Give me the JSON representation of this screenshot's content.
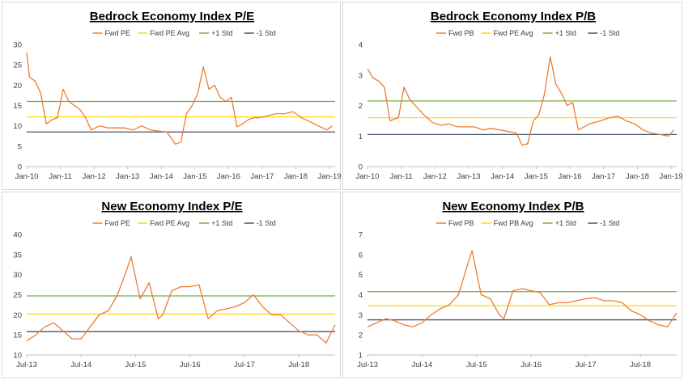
{
  "colors": {
    "fwd": "#ed7d31",
    "avg": "#ffd700",
    "plus_std": "#70ad47",
    "minus_std": "#44546a",
    "axis": "#bfbfbf",
    "text": "#404040"
  },
  "chart_data": [
    {
      "type": "line",
      "title": "Bedrock Economy Index P/E",
      "legend": [
        "Fwd PE",
        "Fwd PE Avg",
        "+1 Std",
        "-1 Std"
      ],
      "legend_position": "top",
      "grid": false,
      "x_ticks": [
        "Jan-10",
        "Jan-11",
        "Jan-12",
        "Jan-13",
        "Jan-14",
        "Jan-15",
        "Jan-16",
        "Jan-17",
        "Jan-18",
        "Jan-19"
      ],
      "x_range": [
        "2010-01",
        "2019-03"
      ],
      "ylim": [
        0,
        30
      ],
      "y_ticks": [
        0,
        5,
        10,
        15,
        20,
        25,
        30
      ],
      "avg": 12.2,
      "plus_std": 16.0,
      "minus_std": 8.5,
      "series": [
        {
          "name": "Fwd PE",
          "x": [
            "2010-01",
            "2010-02",
            "2010-04",
            "2010-06",
            "2010-08",
            "2010-10",
            "2010-12",
            "2011-02",
            "2011-04",
            "2011-06",
            "2011-08",
            "2011-10",
            "2011-12",
            "2012-03",
            "2012-06",
            "2012-09",
            "2012-12",
            "2013-03",
            "2013-06",
            "2013-09",
            "2013-12",
            "2014-03",
            "2014-06",
            "2014-08",
            "2014-10",
            "2014-12",
            "2015-02",
            "2015-04",
            "2015-06",
            "2015-08",
            "2015-10",
            "2015-12",
            "2016-02",
            "2016-04",
            "2016-06",
            "2016-08",
            "2016-10",
            "2016-12",
            "2017-03",
            "2017-06",
            "2017-09",
            "2017-12",
            "2018-03",
            "2018-06",
            "2018-09",
            "2018-12",
            "2019-02"
          ],
          "values": [
            28,
            22,
            21,
            18,
            10.5,
            11.5,
            12,
            19,
            16,
            15,
            14,
            12,
            9,
            10,
            9.5,
            9.5,
            9.5,
            9,
            10,
            9,
            8.7,
            8.5,
            5.5,
            6,
            13,
            15,
            18,
            24.5,
            19,
            20,
            17,
            16,
            17,
            9.8,
            10.5,
            11.5,
            12,
            12,
            12.5,
            13,
            13,
            13.5,
            12,
            11,
            10,
            9,
            10
          ]
        }
      ]
    },
    {
      "type": "line",
      "title": "Bedrock Economy Index P/B",
      "legend": [
        "Fwd PB",
        "Fwd PE Avg",
        "+1 Std",
        "-1 Std"
      ],
      "legend_position": "top",
      "grid": false,
      "x_ticks": [
        "Jan-10",
        "Jan-11",
        "Jan-12",
        "Jan-13",
        "Jan-14",
        "Jan-15",
        "Jan-16",
        "Jan-17",
        "Jan-18",
        "Jan-19"
      ],
      "x_range": [
        "2010-01",
        "2019-03"
      ],
      "ylim": [
        0,
        4
      ],
      "y_ticks": [
        0,
        1,
        2,
        3,
        4
      ],
      "avg": 1.6,
      "plus_std": 2.15,
      "minus_std": 1.05,
      "series": [
        {
          "name": "Fwd PB",
          "x": [
            "2010-01",
            "2010-03",
            "2010-05",
            "2010-07",
            "2010-09",
            "2010-12",
            "2011-02",
            "2011-04",
            "2011-06",
            "2011-09",
            "2011-12",
            "2012-03",
            "2012-06",
            "2012-09",
            "2012-12",
            "2013-03",
            "2013-06",
            "2013-09",
            "2013-12",
            "2014-03",
            "2014-06",
            "2014-08",
            "2014-10",
            "2014-12",
            "2015-02",
            "2015-04",
            "2015-06",
            "2015-08",
            "2015-10",
            "2015-12",
            "2016-02",
            "2016-04",
            "2016-06",
            "2016-08",
            "2016-10",
            "2016-12",
            "2017-03",
            "2017-06",
            "2017-09",
            "2017-12",
            "2018-03",
            "2018-06",
            "2018-09",
            "2018-12",
            "2019-02"
          ],
          "values": [
            3.2,
            2.9,
            2.8,
            2.6,
            1.5,
            1.6,
            2.6,
            2.2,
            2.0,
            1.7,
            1.45,
            1.35,
            1.4,
            1.3,
            1.3,
            1.3,
            1.2,
            1.25,
            1.2,
            1.15,
            1.1,
            0.7,
            0.75,
            1.5,
            1.7,
            2.4,
            3.6,
            2.7,
            2.4,
            2.0,
            2.1,
            1.2,
            1.3,
            1.4,
            1.45,
            1.5,
            1.6,
            1.65,
            1.5,
            1.4,
            1.2,
            1.1,
            1.05,
            1.0,
            1.2
          ]
        }
      ]
    },
    {
      "type": "line",
      "title": "New Economy Index P/E",
      "legend": [
        "Fwd PE",
        "Fwd PE Avg",
        "+1 Std",
        "-1 Std"
      ],
      "legend_position": "top",
      "grid": false,
      "x_ticks": [
        "Jul-13",
        "Jul-14",
        "Jul-15",
        "Jul-16",
        "Jul-17",
        "Jul-18"
      ],
      "x_range": [
        "2013-07",
        "2019-03"
      ],
      "ylim": [
        10,
        40
      ],
      "y_ticks": [
        10,
        15,
        20,
        25,
        30,
        35,
        40
      ],
      "avg": 20.2,
      "plus_std": 24.7,
      "minus_std": 15.8,
      "series": [
        {
          "name": "Fwd PE",
          "x": [
            "2013-07",
            "2013-09",
            "2013-11",
            "2014-01",
            "2014-03",
            "2014-05",
            "2014-07",
            "2014-09",
            "2014-11",
            "2015-01",
            "2015-03",
            "2015-05",
            "2015-06",
            "2015-08",
            "2015-10",
            "2015-12",
            "2016-01",
            "2016-03",
            "2016-05",
            "2016-07",
            "2016-09",
            "2016-11",
            "2017-01",
            "2017-03",
            "2017-05",
            "2017-07",
            "2017-09",
            "2017-11",
            "2018-01",
            "2018-03",
            "2018-05",
            "2018-07",
            "2018-09",
            "2018-11",
            "2019-01",
            "2019-03"
          ],
          "values": [
            13.5,
            15,
            17,
            18,
            16,
            14,
            14,
            17,
            20,
            21,
            25,
            31,
            34.5,
            24,
            28,
            19,
            20,
            26,
            27,
            27,
            27.5,
            19,
            21,
            21.5,
            22,
            23,
            25,
            22,
            20,
            20,
            18,
            16,
            15,
            15,
            13,
            17.5
          ]
        }
      ]
    },
    {
      "type": "line",
      "title": "New Economy Index P/B",
      "legend": [
        "Fwd PB",
        "Fwd PB Avg",
        "+1 Std",
        "-1 Std"
      ],
      "legend_position": "top",
      "grid": false,
      "x_ticks": [
        "Jul-13",
        "Jul-14",
        "Jul-15",
        "Jul-16",
        "Jul-17",
        "Jul-18"
      ],
      "x_range": [
        "2013-07",
        "2019-03"
      ],
      "ylim": [
        1,
        7
      ],
      "y_ticks": [
        1,
        2,
        3,
        4,
        5,
        6,
        7
      ],
      "avg": 3.45,
      "plus_std": 4.15,
      "minus_std": 2.75,
      "series": [
        {
          "name": "Fwd PB",
          "x": [
            "2013-07",
            "2013-09",
            "2013-11",
            "2014-01",
            "2014-03",
            "2014-05",
            "2014-07",
            "2014-09",
            "2014-11",
            "2015-01",
            "2015-03",
            "2015-05",
            "2015-06",
            "2015-08",
            "2015-10",
            "2015-12",
            "2016-01",
            "2016-03",
            "2016-05",
            "2016-07",
            "2016-09",
            "2016-11",
            "2017-01",
            "2017-03",
            "2017-05",
            "2017-07",
            "2017-09",
            "2017-11",
            "2018-01",
            "2018-03",
            "2018-05",
            "2018-07",
            "2018-09",
            "2018-11",
            "2019-01",
            "2019-03"
          ],
          "values": [
            2.4,
            2.6,
            2.8,
            2.7,
            2.5,
            2.4,
            2.6,
            3.0,
            3.3,
            3.5,
            4.0,
            5.5,
            6.2,
            4.0,
            3.8,
            3.0,
            2.8,
            4.2,
            4.3,
            4.2,
            4.1,
            3.5,
            3.6,
            3.6,
            3.7,
            3.8,
            3.85,
            3.7,
            3.7,
            3.6,
            3.2,
            3.0,
            2.7,
            2.5,
            2.4,
            3.1
          ]
        }
      ]
    }
  ]
}
